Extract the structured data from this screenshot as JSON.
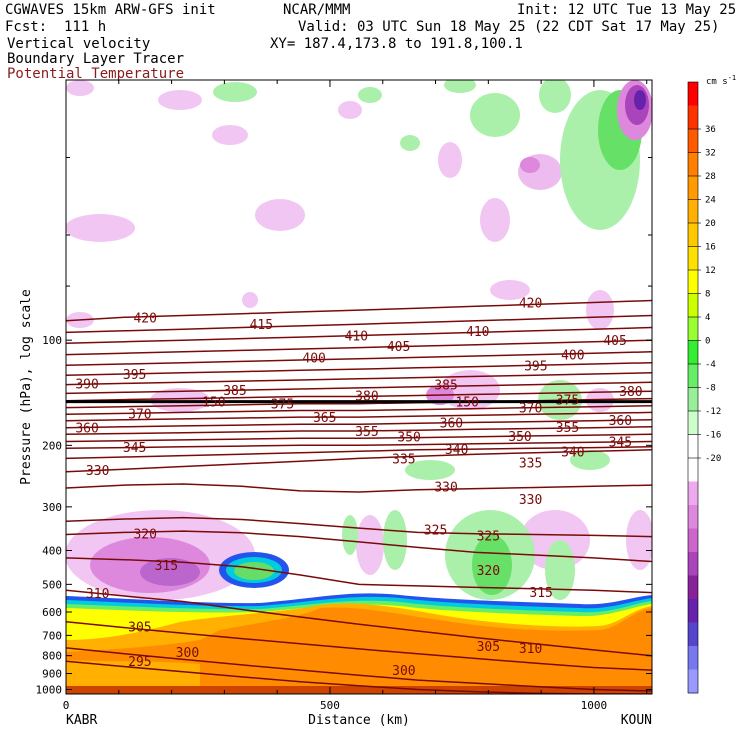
{
  "header": {
    "line1_left": "CGWAVES 15km ARW-GFS init",
    "line1_center": "NCAR/MMM",
    "line1_right": "Init: 12 UTC Tue 13 May 25",
    "line2_left": "Fcst:  111 h",
    "line2_right": "Valid: 03 UTC Sun 18 May 25 (22 CDT Sat 17 May 25)",
    "line3_left": "Vertical velocity",
    "line3_right": "XY= 187.4,173.8 to 191.8,100.1",
    "line4_left": "Boundary Layer Tracer",
    "line5_left": "Potential Temperature"
  },
  "colors": {
    "theta": "#7a0a0a",
    "background": "#ffffff"
  },
  "chart_data": {
    "type": "heatmap",
    "title": "Vertical velocity / Boundary Layer Tracer / Potential Temperature",
    "xlabel": "Distance (km)",
    "ylabel": "Pressure (hPa), log scale",
    "x_ticks": [
      "0",
      "500",
      "1000"
    ],
    "x_range": [
      0,
      1110
    ],
    "endpoints": {
      "left": "KABR",
      "right": "KOUN"
    },
    "y_ticks": [
      "100",
      "200",
      "300",
      "400",
      "500",
      "600",
      "700",
      "800",
      "900",
      "1000"
    ],
    "y_range": [
      1030,
      18
    ],
    "colorbar": {
      "unit": "cm s",
      "unit_exp": "-1",
      "labels": [
        "36",
        "32",
        "28",
        "24",
        "20",
        "16",
        "12",
        "8",
        "4",
        "0",
        "-4",
        "-8",
        "-12",
        "-16",
        "-20"
      ],
      "colors": [
        "#ff0000",
        "#ff3300",
        "#ff5a00",
        "#ff7f00",
        "#ff9a00",
        "#ffb000",
        "#ffc800",
        "#ffe000",
        "#ffff00",
        "#ccff00",
        "#99ff33",
        "#33ee33",
        "#66ee66",
        "#99ee99",
        "#ccffcc",
        "#ffffff",
        "#ffffff",
        "#eeaaee",
        "#dd88dd",
        "#cc66cc",
        "#aa44bb",
        "#882299",
        "#6622aa",
        "#5544cc",
        "#7777ee",
        "#9999ff"
      ]
    },
    "theta_contours": [
      {
        "value": 420,
        "p": [
          88,
          86,
          85,
          84,
          83,
          82,
          81,
          80,
          79,
          78,
          77
        ]
      },
      {
        "value": 415,
        "p": [
          95,
          94,
          93,
          92,
          91,
          90,
          89,
          88,
          87,
          86,
          85
        ]
      },
      {
        "value": 410,
        "p": [
          102,
          101,
          100,
          99,
          98,
          97,
          96,
          95,
          94,
          93,
          92
        ]
      },
      {
        "value": 405,
        "p": [
          110,
          109,
          108,
          107,
          106,
          105,
          104,
          103,
          102,
          101,
          100
        ]
      },
      {
        "value": 400,
        "p": [
          118,
          117,
          116,
          115,
          114,
          113,
          112,
          111,
          110,
          109,
          108
        ]
      },
      {
        "value": 395,
        "p": [
          126,
          125,
          124,
          123,
          122,
          121,
          120,
          119,
          118,
          117,
          116
        ]
      },
      {
        "value": 390,
        "p": [
          134,
          133,
          132,
          131,
          130,
          129,
          128,
          127,
          126,
          125,
          124
        ]
      },
      {
        "value": 385,
        "p": [
          142,
          141,
          140,
          139,
          138,
          137,
          136,
          135,
          134,
          133,
          132
        ]
      },
      {
        "value": 380,
        "p": [
          149,
          148,
          147,
          146,
          145,
          145,
          144,
          143,
          142,
          141,
          140
        ]
      },
      {
        "value": 375,
        "p": [
          156,
          155,
          154,
          153,
          152,
          152,
          151,
          150,
          149,
          148,
          147
        ]
      },
      {
        "value": 370,
        "p": [
          163,
          162,
          161,
          160,
          159,
          159,
          158,
          157,
          156,
          155,
          154
        ]
      },
      {
        "value": 365,
        "p": [
          170,
          169,
          168,
          167,
          166,
          166,
          165,
          164,
          163,
          162,
          161
        ]
      },
      {
        "value": 360,
        "p": [
          178,
          177,
          176,
          175,
          174,
          174,
          173,
          172,
          171,
          170,
          169
        ]
      },
      {
        "value": 355,
        "p": [
          186,
          185,
          184,
          183,
          182,
          182,
          181,
          180,
          179,
          178,
          177
        ]
      },
      {
        "value": 350,
        "p": [
          195,
          194,
          193,
          192,
          191,
          191,
          190,
          189,
          188,
          187,
          186
        ]
      },
      {
        "value": 345,
        "p": [
          204,
          203,
          202,
          201,
          200,
          200,
          199,
          198,
          197,
          196,
          195
        ]
      },
      {
        "value": 340,
        "p": [
          218,
          216,
          214,
          212,
          210,
          208,
          206,
          205,
          204,
          203,
          202
        ]
      },
      {
        "value": 335,
        "p": [
          238,
          234,
          230,
          226,
          222,
          218,
          215,
          212,
          210,
          208,
          206
        ]
      },
      {
        "value": 330,
        "p": [
          265,
          260,
          258,
          262,
          270,
          272,
          268,
          266,
          264,
          262,
          260
        ]
      },
      {
        "value": 325,
        "p": [
          330,
          325,
          322,
          326,
          335,
          345,
          355,
          358,
          360,
          362,
          365
        ]
      },
      {
        "value": 320,
        "p": [
          360,
          355,
          352,
          356,
          365,
          378,
          392,
          405,
          412,
          420,
          430
        ]
      },
      {
        "value": 315,
        "p": [
          420,
          425,
          432,
          445,
          470,
          500,
          505,
          510,
          515,
          520,
          528
        ]
      },
      {
        "value": 310,
        "p": [
          520,
          540,
          560,
          590,
          620,
          650,
          680,
          710,
          740,
          770,
          800
        ]
      },
      {
        "value": 305,
        "p": [
          640,
          665,
          690,
          715,
          740,
          765,
          790,
          815,
          840,
          865,
          880
        ]
      },
      {
        "value": 300,
        "p": [
          760,
          790,
          820,
          850,
          880,
          910,
          940,
          960,
          980,
          1000,
          1010
        ]
      },
      {
        "value": 295,
        "p": [
          830,
          860,
          890,
          920,
          950,
          975,
          1000,
          1015,
          1025,
          1030,
          1030
        ]
      }
    ],
    "theta_labels": [
      {
        "text": "420",
        "x": 150,
        "p": 86
      },
      {
        "text": "420",
        "x": 880,
        "p": 78
      },
      {
        "text": "415",
        "x": 370,
        "p": 90
      },
      {
        "text": "410",
        "x": 550,
        "p": 97
      },
      {
        "text": "410",
        "x": 780,
        "p": 94
      },
      {
        "text": "405",
        "x": 630,
        "p": 104
      },
      {
        "text": "405",
        "x": 1040,
        "p": 100
      },
      {
        "text": "400",
        "x": 470,
        "p": 112
      },
      {
        "text": "400",
        "x": 960,
        "p": 110
      },
      {
        "text": "395",
        "x": 130,
        "p": 125
      },
      {
        "text": "395",
        "x": 890,
        "p": 118
      },
      {
        "text": "390",
        "x": 40,
        "p": 133
      },
      {
        "text": "385",
        "x": 320,
        "p": 139
      },
      {
        "text": "385",
        "x": 720,
        "p": 134
      },
      {
        "text": "380",
        "x": 570,
        "p": 144
      },
      {
        "text": "380",
        "x": 1070,
        "p": 140
      },
      {
        "text": "375",
        "x": 410,
        "p": 152
      },
      {
        "text": "375",
        "x": 950,
        "p": 148
      },
      {
        "text": "370",
        "x": 140,
        "p": 162
      },
      {
        "text": "370",
        "x": 880,
        "p": 156
      },
      {
        "text": "365",
        "x": 490,
        "p": 166
      },
      {
        "text": "360",
        "x": 40,
        "p": 178
      },
      {
        "text": "360",
        "x": 730,
        "p": 172
      },
      {
        "text": "360",
        "x": 1050,
        "p": 169
      },
      {
        "text": "355",
        "x": 570,
        "p": 182
      },
      {
        "text": "355",
        "x": 950,
        "p": 177
      },
      {
        "text": "350",
        "x": 650,
        "p": 189
      },
      {
        "text": "350",
        "x": 860,
        "p": 188
      },
      {
        "text": "345",
        "x": 130,
        "p": 202
      },
      {
        "text": "345",
        "x": 1050,
        "p": 195
      },
      {
        "text": "340",
        "x": 740,
        "p": 205
      },
      {
        "text": "340",
        "x": 960,
        "p": 208
      },
      {
        "text": "335",
        "x": 640,
        "p": 218
      },
      {
        "text": "335",
        "x": 880,
        "p": 224
      },
      {
        "text": "330",
        "x": 60,
        "p": 235
      },
      {
        "text": "330",
        "x": 720,
        "p": 262
      },
      {
        "text": "330",
        "x": 880,
        "p": 285
      },
      {
        "text": "325",
        "x": 700,
        "p": 348
      },
      {
        "text": "325",
        "x": 800,
        "p": 362
      },
      {
        "text": "320",
        "x": 150,
        "p": 358
      },
      {
        "text": "320",
        "x": 800,
        "p": 455
      },
      {
        "text": "315",
        "x": 190,
        "p": 440
      },
      {
        "text": "315",
        "x": 900,
        "p": 525
      },
      {
        "text": "310",
        "x": 60,
        "p": 530
      },
      {
        "text": "310",
        "x": 880,
        "p": 760
      },
      {
        "text": "305",
        "x": 140,
        "p": 660
      },
      {
        "text": "305",
        "x": 800,
        "p": 750
      },
      {
        "text": "300",
        "x": 230,
        "p": 780
      },
      {
        "text": "300",
        "x": 640,
        "p": 880
      },
      {
        "text": "295",
        "x": 140,
        "p": 830
      },
      {
        "text": "150",
        "x": 280,
        "p": 150
      },
      {
        "text": "150",
        "x": 760,
        "p": 150
      }
    ],
    "tropopause_p": 150
  }
}
